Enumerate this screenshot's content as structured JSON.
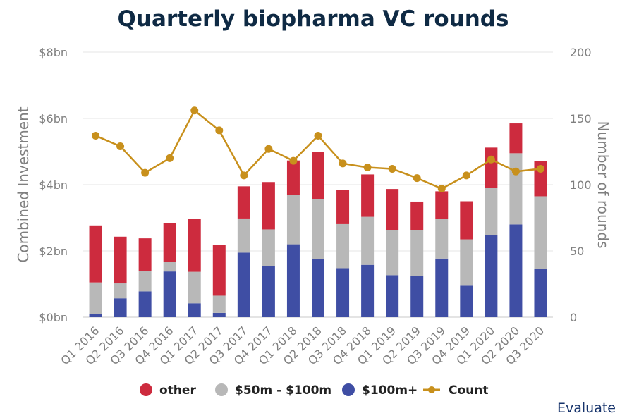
{
  "chart_data": {
    "type": "bar",
    "stacked": true,
    "title": "Quarterly biopharma VC rounds",
    "categories": [
      "Q1 2016",
      "Q2 2016",
      "Q3 2016",
      "Q4 2016",
      "Q1 2017",
      "Q2 2017",
      "Q3 2017",
      "Q4 2017",
      "Q1 2018",
      "Q2 2018",
      "Q3 2018",
      "Q4 2018",
      "Q1 2019",
      "Q2 2019",
      "Q3 2019",
      "Q4 2019",
      "Q1 2020",
      "Q2 2020",
      "Q3 2020"
    ],
    "ylabel": "Combined Investment",
    "y2label": "Number of rounds",
    "ylim": [
      0,
      8
    ],
    "y2lim": [
      0,
      200
    ],
    "yticks": [
      "$0bn",
      "$2bn",
      "$4bn",
      "$6bn",
      "$8bn"
    ],
    "y2ticks": [
      "0",
      "50",
      "100",
      "150",
      "200"
    ],
    "series": [
      {
        "name": "$100m+",
        "color": "#3f4ea4",
        "axis": "left",
        "values": [
          0.1,
          0.57,
          0.78,
          1.38,
          0.42,
          0.13,
          1.95,
          1.55,
          2.2,
          1.75,
          1.48,
          1.58,
          1.27,
          1.25,
          1.77,
          0.95,
          2.48,
          2.8,
          1.45
        ]
      },
      {
        "name": "$50m - $100m",
        "color": "#b8b8b8",
        "axis": "left",
        "values": [
          0.95,
          0.45,
          0.62,
          0.3,
          0.95,
          0.52,
          1.03,
          1.1,
          1.5,
          1.82,
          1.33,
          1.45,
          1.35,
          1.37,
          1.2,
          1.4,
          1.42,
          2.15,
          2.2
        ]
      },
      {
        "name": "other",
        "color": "#cd2b3e",
        "axis": "left",
        "values": [
          1.72,
          1.41,
          0.98,
          1.15,
          1.6,
          1.53,
          0.97,
          1.43,
          1.03,
          1.43,
          1.02,
          1.28,
          1.25,
          0.87,
          0.83,
          1.15,
          1.22,
          0.9,
          1.06
        ]
      },
      {
        "name": "Count",
        "type": "line",
        "color": "#c8901c",
        "axis": "right",
        "values": [
          137,
          129,
          109,
          120,
          156,
          141,
          107,
          127,
          118,
          137,
          116,
          113,
          112,
          105,
          97,
          107,
          119,
          110,
          112
        ]
      }
    ],
    "legend": {
      "placement": "bottom",
      "items": [
        {
          "label": "other",
          "color": "#cd2b3e",
          "kind": "dot"
        },
        {
          "label": "$50m - $100m",
          "color": "#b8b8b8",
          "kind": "dot"
        },
        {
          "label": "$100m+",
          "color": "#3f4ea4",
          "kind": "dot"
        },
        {
          "label": "Count",
          "color": "#c8901c",
          "kind": "line"
        }
      ]
    },
    "grid": true,
    "source": "Evaluate"
  }
}
